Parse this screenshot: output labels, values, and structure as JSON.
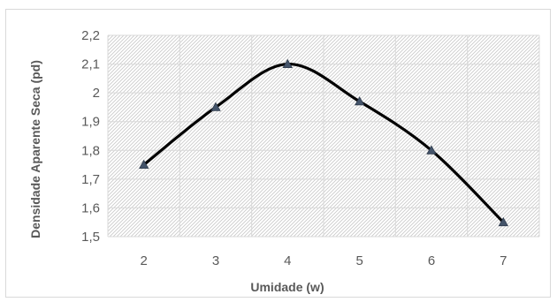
{
  "chart_data": {
    "type": "line",
    "title": "",
    "xlabel": "Umidade (w)",
    "ylabel": "Densidade Aparente Seca (pd)",
    "x": [
      2,
      3,
      4,
      5,
      6,
      7
    ],
    "x_tick_labels": [
      "2",
      "3",
      "4",
      "5",
      "6",
      "7"
    ],
    "y_tick_labels": [
      "1,5",
      "1,6",
      "1,7",
      "1,8",
      "1,9",
      "2",
      "2,1",
      "2,2"
    ],
    "series": [
      {
        "values": [
          1.75,
          1.95,
          2.1,
          1.97,
          1.8,
          1.55
        ]
      }
    ],
    "xlim": [
      1.5,
      7.5
    ],
    "ylim": [
      1.5,
      2.2
    ],
    "grid": true,
    "legend": "none",
    "line_color": "#000000",
    "marker": "triangle",
    "marker_color": "#44546a",
    "plot_background": "hatched-gray",
    "smooth": true
  }
}
